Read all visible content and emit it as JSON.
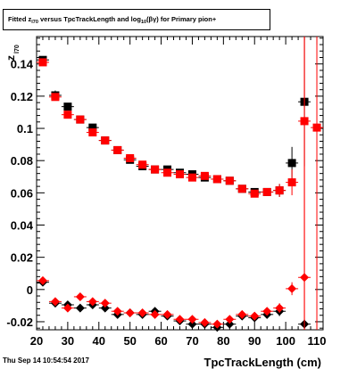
{
  "header": {
    "title_parts": {
      "a": "Fitted  z",
      "a_sub": "l70",
      "b": " versus TpcTrackLength and log",
      "b_sub": "10",
      "c": "(βγ) for Primary pion+"
    }
  },
  "footer": {
    "datestamp": "Thu Sep 14 10:54:54 2017"
  },
  "chart_data": {
    "type": "scatter",
    "title": "Fitted z_l70 versus TpcTrackLength and log10(βγ) for Primary pion+",
    "xlabel": "TpcTrackLength (cm)",
    "ylabel": "z_l70",
    "ylabel_main": "z",
    "ylabel_sub": "l70",
    "xlim": [
      20,
      112
    ],
    "ylim": [
      -0.025,
      0.157
    ],
    "xticks": [
      20,
      30,
      40,
      50,
      60,
      70,
      80,
      90,
      100,
      110
    ],
    "yticks": [
      -0.02,
      0,
      0.02,
      0.04,
      0.06,
      0.08,
      0.1,
      0.12,
      0.14
    ],
    "ytick_labels": [
      "-0.02",
      "0",
      "0.02",
      "0.04",
      "0.06",
      "0.08",
      "0.1",
      "0.12",
      "0.14"
    ],
    "series": [
      {
        "color": "#000000",
        "marker": "square",
        "points": [
          {
            "x": 22,
            "y": 0.1425,
            "xe": 2,
            "ye": 0.002
          },
          {
            "x": 26,
            "y": 0.1205,
            "xe": 2,
            "ye": 0.003
          },
          {
            "x": 30,
            "y": 0.1135,
            "xe": 2,
            "ye": 0.002
          },
          {
            "x": 34,
            "y": 0.1055,
            "xe": 2,
            "ye": 0.001
          },
          {
            "x": 38,
            "y": 0.1005,
            "xe": 2,
            "ye": 0.001
          },
          {
            "x": 42,
            "y": 0.0925,
            "xe": 2,
            "ye": 0.001
          },
          {
            "x": 46,
            "y": 0.0865,
            "xe": 2,
            "ye": 0.001
          },
          {
            "x": 50,
            "y": 0.0805,
            "xe": 2,
            "ye": 0.001
          },
          {
            "x": 54,
            "y": 0.0765,
            "xe": 2,
            "ye": 0.001
          },
          {
            "x": 58,
            "y": 0.0745,
            "xe": 2,
            "ye": 0.001
          },
          {
            "x": 62,
            "y": 0.0745,
            "xe": 2,
            "ye": 0.001
          },
          {
            "x": 66,
            "y": 0.0725,
            "xe": 2,
            "ye": 0.001
          },
          {
            "x": 70,
            "y": 0.0715,
            "xe": 2,
            "ye": 0.001
          },
          {
            "x": 74,
            "y": 0.0695,
            "xe": 2,
            "ye": 0.001
          },
          {
            "x": 78,
            "y": 0.0685,
            "xe": 2,
            "ye": 0.001
          },
          {
            "x": 82,
            "y": 0.0675,
            "xe": 2,
            "ye": 0.001
          },
          {
            "x": 86,
            "y": 0.0625,
            "xe": 2,
            "ye": 0.001
          },
          {
            "x": 90,
            "y": 0.0605,
            "xe": 2,
            "ye": 0.002
          },
          {
            "x": 94,
            "y": 0.0605,
            "xe": 2,
            "ye": 0.002
          },
          {
            "x": 98,
            "y": 0.0615,
            "xe": 2,
            "ye": 0.004
          },
          {
            "x": 102,
            "y": 0.0785,
            "xe": 2,
            "ye": 0.01
          },
          {
            "x": 106,
            "y": 0.1165,
            "xe": 2,
            "ye": 0.04
          }
        ]
      },
      {
        "color": "#ff0000",
        "marker": "square",
        "points": [
          {
            "x": 22,
            "y": 0.141,
            "xe": 2,
            "ye": 0.002
          },
          {
            "x": 26,
            "y": 0.1195,
            "xe": 2,
            "ye": 0.002
          },
          {
            "x": 30,
            "y": 0.1085,
            "xe": 2,
            "ye": 0.001
          },
          {
            "x": 34,
            "y": 0.1055,
            "xe": 2,
            "ye": 0.001
          },
          {
            "x": 38,
            "y": 0.0975,
            "xe": 2,
            "ye": 0.001
          },
          {
            "x": 42,
            "y": 0.0925,
            "xe": 2,
            "ye": 0.001
          },
          {
            "x": 46,
            "y": 0.0865,
            "xe": 2,
            "ye": 0.001
          },
          {
            "x": 50,
            "y": 0.0815,
            "xe": 2,
            "ye": 0.001
          },
          {
            "x": 54,
            "y": 0.0775,
            "xe": 2,
            "ye": 0.001
          },
          {
            "x": 58,
            "y": 0.0745,
            "xe": 2,
            "ye": 0.001
          },
          {
            "x": 62,
            "y": 0.0725,
            "xe": 2,
            "ye": 0.001
          },
          {
            "x": 66,
            "y": 0.0715,
            "xe": 2,
            "ye": 0.001
          },
          {
            "x": 70,
            "y": 0.0695,
            "xe": 2,
            "ye": 0.001
          },
          {
            "x": 74,
            "y": 0.0705,
            "xe": 2,
            "ye": 0.001
          },
          {
            "x": 78,
            "y": 0.0685,
            "xe": 2,
            "ye": 0.001
          },
          {
            "x": 82,
            "y": 0.0675,
            "xe": 2,
            "ye": 0.001
          },
          {
            "x": 86,
            "y": 0.0625,
            "xe": 2,
            "ye": 0.001
          },
          {
            "x": 90,
            "y": 0.0595,
            "xe": 2,
            "ye": 0.002
          },
          {
            "x": 94,
            "y": 0.0605,
            "xe": 2,
            "ye": 0.002
          },
          {
            "x": 98,
            "y": 0.0615,
            "xe": 2,
            "ye": 0.004
          },
          {
            "x": 102,
            "y": 0.0665,
            "xe": 2,
            "ye": 0.008
          },
          {
            "x": 106,
            "y": 0.1045,
            "xe": 2,
            "ye": 0.14
          },
          {
            "x": 110,
            "y": 0.1005,
            "xe": 2,
            "ye": 0.14
          }
        ]
      },
      {
        "color": "#000000",
        "marker": "diamond",
        "points": [
          {
            "x": 22,
            "y": 0.0045,
            "xe": 2,
            "ye": 0.001
          },
          {
            "x": 26,
            "y": -0.0085,
            "xe": 2,
            "ye": 0.001
          },
          {
            "x": 30,
            "y": -0.0095,
            "xe": 2,
            "ye": 0.001
          },
          {
            "x": 34,
            "y": -0.0115,
            "xe": 2,
            "ye": 0.001
          },
          {
            "x": 38,
            "y": -0.0095,
            "xe": 2,
            "ye": 0.001
          },
          {
            "x": 42,
            "y": -0.0115,
            "xe": 2,
            "ye": 0.001
          },
          {
            "x": 46,
            "y": -0.0155,
            "xe": 2,
            "ye": 0.001
          },
          {
            "x": 50,
            "y": -0.0145,
            "xe": 2,
            "ye": 0.001
          },
          {
            "x": 54,
            "y": -0.0155,
            "xe": 2,
            "ye": 0.001
          },
          {
            "x": 58,
            "y": -0.0135,
            "xe": 2,
            "ye": 0.001
          },
          {
            "x": 62,
            "y": -0.0165,
            "xe": 2,
            "ye": 0.001
          },
          {
            "x": 66,
            "y": -0.0195,
            "xe": 2,
            "ye": 0.001
          },
          {
            "x": 70,
            "y": -0.0215,
            "xe": 2,
            "ye": 0.001
          },
          {
            "x": 74,
            "y": -0.0215,
            "xe": 2,
            "ye": 0.001
          },
          {
            "x": 78,
            "y": -0.0235,
            "xe": 2,
            "ye": 0.001
          },
          {
            "x": 82,
            "y": -0.0215,
            "xe": 2,
            "ye": 0.001
          },
          {
            "x": 86,
            "y": -0.0165,
            "xe": 2,
            "ye": 0.001
          },
          {
            "x": 90,
            "y": -0.0175,
            "xe": 2,
            "ye": 0.002
          },
          {
            "x": 94,
            "y": -0.0155,
            "xe": 2,
            "ye": 0.002
          },
          {
            "x": 98,
            "y": -0.0135,
            "xe": 2,
            "ye": 0.003
          },
          {
            "x": 106,
            "y": -0.0215,
            "xe": 2,
            "ye": 0.003
          }
        ]
      },
      {
        "color": "#ff0000",
        "marker": "diamond",
        "points": [
          {
            "x": 22,
            "y": 0.0055,
            "xe": 2,
            "ye": 0.001
          },
          {
            "x": 26,
            "y": -0.0075,
            "xe": 2,
            "ye": 0.001
          },
          {
            "x": 30,
            "y": -0.0115,
            "xe": 2,
            "ye": 0.001
          },
          {
            "x": 34,
            "y": -0.0045,
            "xe": 2,
            "ye": 0.001
          },
          {
            "x": 38,
            "y": -0.0075,
            "xe": 2,
            "ye": 0.001
          },
          {
            "x": 42,
            "y": -0.0085,
            "xe": 2,
            "ye": 0.001
          },
          {
            "x": 46,
            "y": -0.0135,
            "xe": 2,
            "ye": 0.001
          },
          {
            "x": 50,
            "y": -0.0145,
            "xe": 2,
            "ye": 0.001
          },
          {
            "x": 54,
            "y": -0.0145,
            "xe": 2,
            "ye": 0.001
          },
          {
            "x": 58,
            "y": -0.0155,
            "xe": 2,
            "ye": 0.001
          },
          {
            "x": 62,
            "y": -0.0155,
            "xe": 2,
            "ye": 0.001
          },
          {
            "x": 66,
            "y": -0.0185,
            "xe": 2,
            "ye": 0.001
          },
          {
            "x": 70,
            "y": -0.0185,
            "xe": 2,
            "ye": 0.001
          },
          {
            "x": 74,
            "y": -0.0205,
            "xe": 2,
            "ye": 0.001
          },
          {
            "x": 78,
            "y": -0.0215,
            "xe": 2,
            "ye": 0.001
          },
          {
            "x": 82,
            "y": -0.0185,
            "xe": 2,
            "ye": 0.001
          },
          {
            "x": 86,
            "y": -0.0155,
            "xe": 2,
            "ye": 0.001
          },
          {
            "x": 90,
            "y": -0.0165,
            "xe": 2,
            "ye": 0.002
          },
          {
            "x": 94,
            "y": -0.0135,
            "xe": 2,
            "ye": 0.002
          },
          {
            "x": 98,
            "y": -0.0115,
            "xe": 2,
            "ye": 0.003
          },
          {
            "x": 102,
            "y": 0.0005,
            "xe": 2,
            "ye": 0.004
          },
          {
            "x": 106,
            "y": 0.0075,
            "xe": 2,
            "ye": 0.15
          }
        ]
      }
    ]
  }
}
